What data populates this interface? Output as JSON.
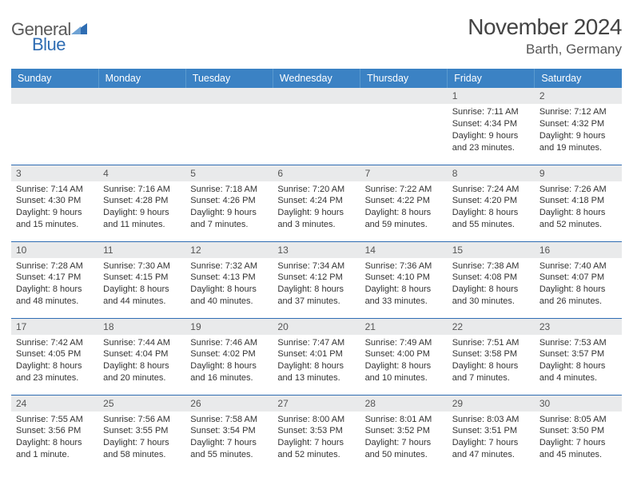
{
  "brand": {
    "part1": "General",
    "part2": "Blue"
  },
  "title": "November 2024",
  "location": "Barth, Germany",
  "colors": {
    "header_bg": "#3b82c4",
    "header_text": "#ffffff",
    "daynum_bg": "#e9eaeb",
    "border": "#2f6db3",
    "brand_blue": "#2f6db3",
    "brand_gray": "#5a5a5a",
    "body_text": "#333333"
  },
  "typography": {
    "title_fontsize": 28,
    "location_fontsize": 17,
    "header_fontsize": 12.5,
    "daynum_fontsize": 12,
    "body_fontsize": 11
  },
  "day_headers": [
    "Sunday",
    "Monday",
    "Tuesday",
    "Wednesday",
    "Thursday",
    "Friday",
    "Saturday"
  ],
  "weeks": [
    [
      {
        "num": "",
        "sunrise": "",
        "sunset": "",
        "daylight": ""
      },
      {
        "num": "",
        "sunrise": "",
        "sunset": "",
        "daylight": ""
      },
      {
        "num": "",
        "sunrise": "",
        "sunset": "",
        "daylight": ""
      },
      {
        "num": "",
        "sunrise": "",
        "sunset": "",
        "daylight": ""
      },
      {
        "num": "",
        "sunrise": "",
        "sunset": "",
        "daylight": ""
      },
      {
        "num": "1",
        "sunrise": "Sunrise: 7:11 AM",
        "sunset": "Sunset: 4:34 PM",
        "daylight": "Daylight: 9 hours and 23 minutes."
      },
      {
        "num": "2",
        "sunrise": "Sunrise: 7:12 AM",
        "sunset": "Sunset: 4:32 PM",
        "daylight": "Daylight: 9 hours and 19 minutes."
      }
    ],
    [
      {
        "num": "3",
        "sunrise": "Sunrise: 7:14 AM",
        "sunset": "Sunset: 4:30 PM",
        "daylight": "Daylight: 9 hours and 15 minutes."
      },
      {
        "num": "4",
        "sunrise": "Sunrise: 7:16 AM",
        "sunset": "Sunset: 4:28 PM",
        "daylight": "Daylight: 9 hours and 11 minutes."
      },
      {
        "num": "5",
        "sunrise": "Sunrise: 7:18 AM",
        "sunset": "Sunset: 4:26 PM",
        "daylight": "Daylight: 9 hours and 7 minutes."
      },
      {
        "num": "6",
        "sunrise": "Sunrise: 7:20 AM",
        "sunset": "Sunset: 4:24 PM",
        "daylight": "Daylight: 9 hours and 3 minutes."
      },
      {
        "num": "7",
        "sunrise": "Sunrise: 7:22 AM",
        "sunset": "Sunset: 4:22 PM",
        "daylight": "Daylight: 8 hours and 59 minutes."
      },
      {
        "num": "8",
        "sunrise": "Sunrise: 7:24 AM",
        "sunset": "Sunset: 4:20 PM",
        "daylight": "Daylight: 8 hours and 55 minutes."
      },
      {
        "num": "9",
        "sunrise": "Sunrise: 7:26 AM",
        "sunset": "Sunset: 4:18 PM",
        "daylight": "Daylight: 8 hours and 52 minutes."
      }
    ],
    [
      {
        "num": "10",
        "sunrise": "Sunrise: 7:28 AM",
        "sunset": "Sunset: 4:17 PM",
        "daylight": "Daylight: 8 hours and 48 minutes."
      },
      {
        "num": "11",
        "sunrise": "Sunrise: 7:30 AM",
        "sunset": "Sunset: 4:15 PM",
        "daylight": "Daylight: 8 hours and 44 minutes."
      },
      {
        "num": "12",
        "sunrise": "Sunrise: 7:32 AM",
        "sunset": "Sunset: 4:13 PM",
        "daylight": "Daylight: 8 hours and 40 minutes."
      },
      {
        "num": "13",
        "sunrise": "Sunrise: 7:34 AM",
        "sunset": "Sunset: 4:12 PM",
        "daylight": "Daylight: 8 hours and 37 minutes."
      },
      {
        "num": "14",
        "sunrise": "Sunrise: 7:36 AM",
        "sunset": "Sunset: 4:10 PM",
        "daylight": "Daylight: 8 hours and 33 minutes."
      },
      {
        "num": "15",
        "sunrise": "Sunrise: 7:38 AM",
        "sunset": "Sunset: 4:08 PM",
        "daylight": "Daylight: 8 hours and 30 minutes."
      },
      {
        "num": "16",
        "sunrise": "Sunrise: 7:40 AM",
        "sunset": "Sunset: 4:07 PM",
        "daylight": "Daylight: 8 hours and 26 minutes."
      }
    ],
    [
      {
        "num": "17",
        "sunrise": "Sunrise: 7:42 AM",
        "sunset": "Sunset: 4:05 PM",
        "daylight": "Daylight: 8 hours and 23 minutes."
      },
      {
        "num": "18",
        "sunrise": "Sunrise: 7:44 AM",
        "sunset": "Sunset: 4:04 PM",
        "daylight": "Daylight: 8 hours and 20 minutes."
      },
      {
        "num": "19",
        "sunrise": "Sunrise: 7:46 AM",
        "sunset": "Sunset: 4:02 PM",
        "daylight": "Daylight: 8 hours and 16 minutes."
      },
      {
        "num": "20",
        "sunrise": "Sunrise: 7:47 AM",
        "sunset": "Sunset: 4:01 PM",
        "daylight": "Daylight: 8 hours and 13 minutes."
      },
      {
        "num": "21",
        "sunrise": "Sunrise: 7:49 AM",
        "sunset": "Sunset: 4:00 PM",
        "daylight": "Daylight: 8 hours and 10 minutes."
      },
      {
        "num": "22",
        "sunrise": "Sunrise: 7:51 AM",
        "sunset": "Sunset: 3:58 PM",
        "daylight": "Daylight: 8 hours and 7 minutes."
      },
      {
        "num": "23",
        "sunrise": "Sunrise: 7:53 AM",
        "sunset": "Sunset: 3:57 PM",
        "daylight": "Daylight: 8 hours and 4 minutes."
      }
    ],
    [
      {
        "num": "24",
        "sunrise": "Sunrise: 7:55 AM",
        "sunset": "Sunset: 3:56 PM",
        "daylight": "Daylight: 8 hours and 1 minute."
      },
      {
        "num": "25",
        "sunrise": "Sunrise: 7:56 AM",
        "sunset": "Sunset: 3:55 PM",
        "daylight": "Daylight: 7 hours and 58 minutes."
      },
      {
        "num": "26",
        "sunrise": "Sunrise: 7:58 AM",
        "sunset": "Sunset: 3:54 PM",
        "daylight": "Daylight: 7 hours and 55 minutes."
      },
      {
        "num": "27",
        "sunrise": "Sunrise: 8:00 AM",
        "sunset": "Sunset: 3:53 PM",
        "daylight": "Daylight: 7 hours and 52 minutes."
      },
      {
        "num": "28",
        "sunrise": "Sunrise: 8:01 AM",
        "sunset": "Sunset: 3:52 PM",
        "daylight": "Daylight: 7 hours and 50 minutes."
      },
      {
        "num": "29",
        "sunrise": "Sunrise: 8:03 AM",
        "sunset": "Sunset: 3:51 PM",
        "daylight": "Daylight: 7 hours and 47 minutes."
      },
      {
        "num": "30",
        "sunrise": "Sunrise: 8:05 AM",
        "sunset": "Sunset: 3:50 PM",
        "daylight": "Daylight: 7 hours and 45 minutes."
      }
    ]
  ]
}
